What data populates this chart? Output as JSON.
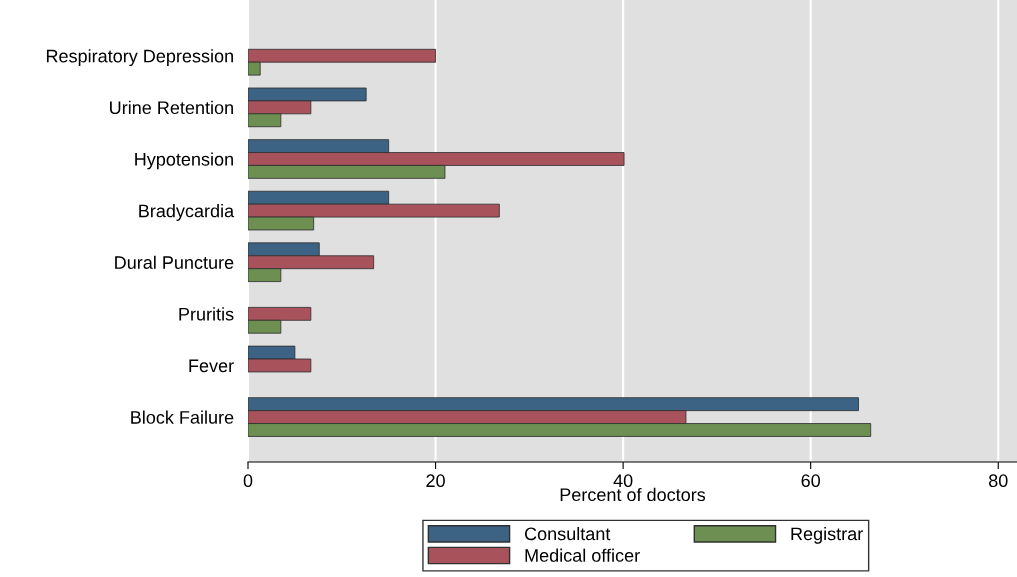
{
  "chart_data": {
    "type": "bar",
    "orientation": "horizontal",
    "xlabel": "Percent of doctors",
    "categories": [
      "Respiratory Depression",
      "Urine Retention",
      "Hypotension",
      "Bradycardia",
      "Dural Puncture",
      "Pruritis",
      "Fever",
      "Block Failure"
    ],
    "series": [
      {
        "name": "Consultant",
        "color": "#3d6384",
        "values": [
          null,
          12.6,
          15.0,
          15.0,
          7.6,
          null,
          5.0,
          65.1
        ]
      },
      {
        "name": "Medical officer",
        "color": "#a8525c",
        "values": [
          20.0,
          6.7,
          40.1,
          26.8,
          13.4,
          6.7,
          6.7,
          46.7
        ]
      },
      {
        "name": "Registrar",
        "color": "#6d8f52",
        "values": [
          1.3,
          3.5,
          21.0,
          7.0,
          3.5,
          3.5,
          null,
          66.4
        ]
      }
    ],
    "xlim": [
      0,
      82
    ],
    "xticks": [
      0,
      20,
      40,
      60,
      80
    ],
    "grid": "x",
    "legend": "bottom"
  }
}
